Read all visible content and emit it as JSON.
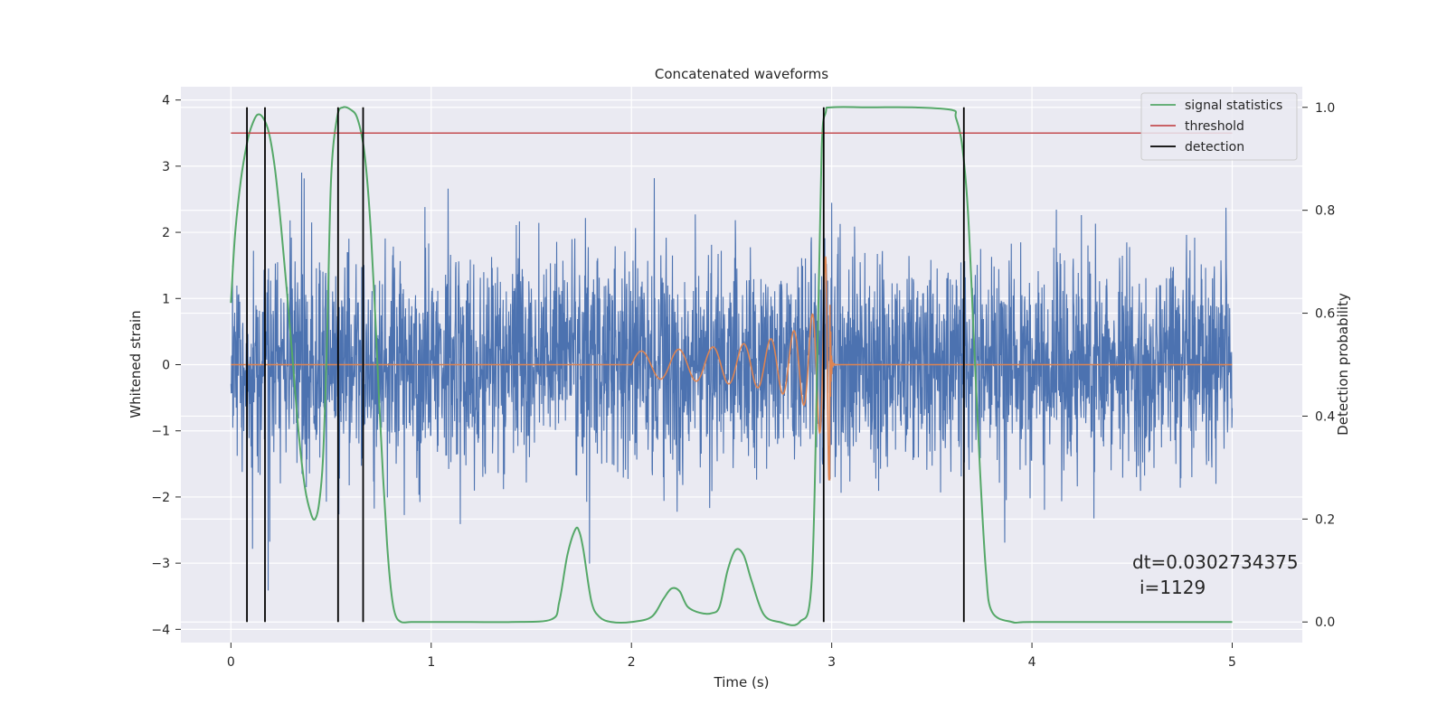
{
  "chart_data": {
    "type": "line",
    "title": "Concatenated waveforms",
    "xlabel": "Time (s)",
    "ylabel": "Whitened strain",
    "y2label": "Detection probability",
    "xlim": [
      -0.25,
      5.35
    ],
    "ylim": [
      -4.2,
      4.2
    ],
    "y2lim": [
      -0.04,
      1.04
    ],
    "x_ticks": [
      0,
      1,
      2,
      3,
      4,
      5
    ],
    "y_ticks": [
      -4,
      -3,
      -2,
      -1,
      0,
      1,
      2,
      3,
      4
    ],
    "y2_ticks": [
      0.0,
      0.2,
      0.4,
      0.6,
      0.8,
      1.0
    ],
    "x_tick_labels": [
      "0",
      "1",
      "2",
      "3",
      "4",
      "5"
    ],
    "y_tick_labels": [
      "−4",
      "−3",
      "−2",
      "−1",
      "0",
      "1",
      "2",
      "3",
      "4"
    ],
    "y2_tick_labels": [
      "0.0",
      "0.2",
      "0.4",
      "0.6",
      "0.8",
      "1.0"
    ],
    "grid": true,
    "legend_position": "top-right",
    "colors": {
      "background": "#eaeaf2",
      "grid": "#ffffff",
      "strain": "#4c72b0",
      "signal": "#dd8452",
      "statistics": "#55a868",
      "threshold": "#c44e52",
      "detection": "#000000"
    },
    "series": [
      {
        "name": "",
        "kind": "noise",
        "axis": "left",
        "x_range": [
          0,
          5
        ],
        "amplitude_sigma": 0.8,
        "peak_max": 3.85,
        "peak_min": -3.8
      },
      {
        "name": "",
        "kind": "chirp",
        "axis": "left",
        "x_range": [
          0,
          5
        ],
        "chirp_start": 2.0,
        "merger": 2.99,
        "ringdown_end": 3.0,
        "amplitude_start": 0.2,
        "amplitude_peak": 1.75
      },
      {
        "name": "signal statistics",
        "axis": "right",
        "x": [
          0,
          0.02,
          0.05,
          0.08,
          0.1,
          0.13,
          0.16,
          0.19,
          0.22,
          0.25,
          0.28,
          0.31,
          0.34,
          0.37,
          0.4,
          0.42,
          0.44,
          0.46,
          0.48,
          0.5,
          0.53,
          0.56,
          0.6,
          0.63,
          0.66,
          0.68,
          0.7,
          0.72,
          0.74,
          0.76,
          0.78,
          0.8,
          0.82,
          0.85,
          0.9,
          1.0,
          1.2,
          1.4,
          1.6,
          1.64,
          1.68,
          1.72,
          1.74,
          1.76,
          1.8,
          1.84,
          1.9,
          2.0,
          2.1,
          2.16,
          2.2,
          2.24,
          2.28,
          2.34,
          2.4,
          2.44,
          2.48,
          2.52,
          2.56,
          2.6,
          2.66,
          2.74,
          2.84,
          2.9,
          2.93,
          2.95,
          2.97,
          3.0,
          3.2,
          3.4,
          3.6,
          3.62,
          3.65,
          3.68,
          3.71,
          3.74,
          3.77,
          3.8,
          3.9,
          4.0,
          4.5,
          5.0
        ],
        "y": [
          0.62,
          0.75,
          0.86,
          0.93,
          0.96,
          0.985,
          0.98,
          0.95,
          0.88,
          0.77,
          0.64,
          0.5,
          0.36,
          0.26,
          0.21,
          0.2,
          0.23,
          0.32,
          0.55,
          0.86,
          0.98,
          1.0,
          0.995,
          0.98,
          0.93,
          0.86,
          0.75,
          0.6,
          0.43,
          0.28,
          0.15,
          0.06,
          0.015,
          0.0,
          0.0,
          0.0,
          0.0,
          0.0,
          0.005,
          0.04,
          0.13,
          0.18,
          0.175,
          0.14,
          0.04,
          0.01,
          0.0,
          0.0,
          0.01,
          0.045,
          0.065,
          0.06,
          0.03,
          0.018,
          0.017,
          0.03,
          0.1,
          0.14,
          0.13,
          0.08,
          0.015,
          0.0,
          0.0,
          0.08,
          0.55,
          0.92,
          0.99,
          1.0,
          1.0,
          1.0,
          0.995,
          0.98,
          0.93,
          0.8,
          0.55,
          0.3,
          0.1,
          0.02,
          0.0,
          0.0,
          0.0,
          0.0
        ]
      },
      {
        "name": "threshold",
        "axis": "right",
        "x": [
          0,
          5
        ],
        "y": [
          0.95,
          0.95
        ]
      },
      {
        "name": "detection",
        "axis": "right",
        "kind": "vertical-lines",
        "x": [
          0.08,
          0.17,
          0.535,
          0.66,
          2.96,
          3.66
        ],
        "y_range": [
          0.0,
          1.0
        ]
      }
    ],
    "annotations": [
      "dt=0.0302734375",
      "i=1129"
    ]
  }
}
